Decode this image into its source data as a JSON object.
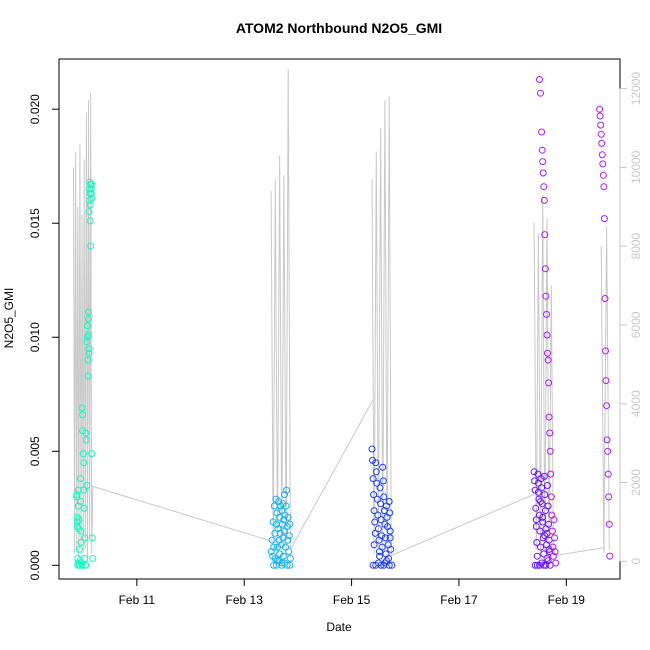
{
  "chart_data": {
    "type": "scatter",
    "title": "ATOM2 Northbound N2O5_GMI",
    "xlabel": "Date",
    "ylabel": "N2O5_GMI",
    "x_ticks": [
      "Feb 11",
      "Feb 13",
      "Feb 15",
      "Feb 17",
      "Feb 19"
    ],
    "x_tick_values": [
      11,
      13,
      15,
      17,
      19
    ],
    "xlim": [
      9.55,
      20.0
    ],
    "y_ticks": [
      "0.000",
      "0.005",
      "0.010",
      "0.015",
      "0.020"
    ],
    "y_tick_values": [
      0.0,
      0.005,
      0.01,
      0.015,
      0.02
    ],
    "ylim": [
      -0.0006,
      0.0222
    ],
    "y2_ticks": [
      "0",
      "2000",
      "4000",
      "6000",
      "8000",
      "10000",
      "12000"
    ],
    "y2_tick_values": [
      0,
      2000,
      4000,
      6000,
      8000,
      10000,
      12000
    ],
    "y2lim": [
      -450,
      12750
    ],
    "grid": false,
    "series": [
      {
        "color": "#19f5c2",
        "values_x": [
          9.88,
          9.88,
          9.89,
          9.89,
          9.89,
          9.9,
          9.9,
          9.9,
          9.91,
          9.91,
          9.92,
          9.92,
          9.93,
          9.93,
          9.94,
          9.94,
          9.95,
          9.95,
          9.96,
          9.96,
          9.97,
          9.98,
          9.98,
          9.99,
          9.99,
          10.0,
          10.01,
          10.01,
          10.02,
          10.03,
          10.03,
          10.04,
          10.05,
          10.05,
          10.06,
          10.07,
          10.07,
          10.08,
          10.08,
          10.09,
          10.09,
          10.1,
          10.1,
          10.1,
          10.11,
          10.11,
          10.11,
          10.12,
          10.12,
          10.12,
          10.13,
          10.13,
          10.13,
          10.14,
          10.14,
          10.15,
          10.15,
          10.16,
          10.16,
          10.16,
          10.17,
          10.18
        ],
        "values_y": [
          0.0031,
          0.003,
          0.0021,
          0.0019,
          0.0017,
          0.0003,
          0.0001,
          0.0,
          0.0033,
          0.0026,
          0.002,
          0.0016,
          0.0007,
          0.0,
          0.0,
          0.0002,
          0.0038,
          0.0028,
          0.0015,
          0.001,
          0.0001,
          0.0,
          0.0069,
          0.0066,
          0.0059,
          0.0049,
          0.0045,
          0.0033,
          0.0025,
          0.0012,
          0.0003,
          0.0,
          0.0,
          0.0058,
          0.0055,
          0.0035,
          0.0098,
          0.0105,
          0.01,
          0.009,
          0.0083,
          0.0108,
          0.0111,
          0.0101,
          0.0095,
          0.0093,
          0.0155,
          0.016,
          0.0165,
          0.0168,
          0.0163,
          0.0158,
          0.0151,
          0.014,
          0.0167,
          0.0163,
          0.0165,
          0.0167,
          0.0161,
          0.0049,
          0.0012,
          0.0003
        ]
      },
      {
        "color": "#16b0ee",
        "values_x": [
          13.5,
          13.52,
          13.53,
          13.54,
          13.55,
          13.56,
          13.57,
          13.58,
          13.59,
          13.6,
          13.61,
          13.62,
          13.62,
          13.63,
          13.64,
          13.65,
          13.66,
          13.66,
          13.67,
          13.68,
          13.69,
          13.7,
          13.7,
          13.71,
          13.72,
          13.72,
          13.73,
          13.74,
          13.75,
          13.75,
          13.76,
          13.77,
          13.78,
          13.79,
          13.8,
          13.81,
          13.82,
          13.83,
          13.84,
          13.85,
          13.86,
          13.55,
          13.6,
          13.65,
          13.7,
          13.75,
          13.8,
          13.85
        ],
        "values_y": [
          0.0006,
          0.0011,
          0.0004,
          0.0019,
          0.0008,
          0.0026,
          0.0014,
          0.0003,
          0.0029,
          0.0018,
          0.0023,
          0.0008,
          0.0002,
          0.0016,
          0.0028,
          0.0011,
          0.0021,
          0.0005,
          0.0014,
          0.0026,
          0.0009,
          0.0024,
          0.0001,
          0.0018,
          0.0027,
          0.0012,
          0.0004,
          0.002,
          0.0031,
          0.0015,
          0.0022,
          0.0008,
          0.0026,
          0.0033,
          0.0017,
          0.0011,
          0.0021,
          0.0006,
          0.0013,
          0.0018,
          0.0003,
          0.0,
          0.0,
          0.0002,
          0.0,
          0.0001,
          0.0,
          0.0
        ]
      },
      {
        "color": "#1c3ef0",
        "values_x": [
          15.38,
          15.39,
          15.4,
          15.41,
          15.42,
          15.43,
          15.44,
          15.45,
          15.46,
          15.47,
          15.48,
          15.49,
          15.5,
          15.51,
          15.52,
          15.53,
          15.54,
          15.55,
          15.56,
          15.57,
          15.58,
          15.59,
          15.6,
          15.61,
          15.62,
          15.63,
          15.64,
          15.65,
          15.66,
          15.67,
          15.68,
          15.69,
          15.7,
          15.71,
          15.72,
          15.73,
          15.4,
          15.45,
          15.5,
          15.55,
          15.6,
          15.65,
          15.7,
          15.75,
          15.42,
          15.52,
          15.62,
          15.72
        ],
        "values_y": [
          0.0051,
          0.0046,
          0.0038,
          0.0031,
          0.0024,
          0.0019,
          0.0014,
          0.0045,
          0.0041,
          0.0036,
          0.0029,
          0.0022,
          0.0016,
          0.0011,
          0.0006,
          0.0034,
          0.0027,
          0.002,
          0.0013,
          0.0008,
          0.0043,
          0.0037,
          0.003,
          0.0024,
          0.0018,
          0.0012,
          0.0005,
          0.0026,
          0.0021,
          0.0017,
          0.0009,
          0.0003,
          0.0028,
          0.0023,
          0.0015,
          0.0007,
          0.0,
          0.0,
          0.0001,
          0.0,
          0.0,
          0.0002,
          0.0,
          0.0,
          0.0009,
          0.0004,
          0.0001,
          0.0012
        ]
      },
      {
        "color": "#6a14f2",
        "values_x": [
          18.4,
          18.41,
          18.42,
          18.43,
          18.44,
          18.45,
          18.46,
          18.47,
          18.48,
          18.49,
          18.5,
          18.51,
          18.52,
          18.53,
          18.54,
          18.55,
          18.56,
          18.57,
          18.58,
          18.59,
          18.6,
          18.61,
          18.62,
          18.63,
          18.64,
          18.65,
          18.66,
          18.67,
          18.68,
          18.69,
          18.42,
          18.46,
          18.5,
          18.54,
          18.58,
          18.62,
          18.66,
          18.7,
          18.44,
          18.52,
          18.6,
          18.68,
          18.48,
          18.56,
          18.64
        ],
        "values_y": [
          0.0041,
          0.0037,
          0.0033,
          0.0025,
          0.0017,
          0.001,
          0.0004,
          0.004,
          0.0036,
          0.0029,
          0.0022,
          0.0015,
          0.0008,
          0.0038,
          0.0034,
          0.0027,
          0.0019,
          0.0012,
          0.0005,
          0.0039,
          0.0031,
          0.0024,
          0.0016,
          0.0009,
          0.0003,
          0.0035,
          0.0026,
          0.0018,
          0.0011,
          0.0006,
          0.0,
          0.0,
          0.0,
          0.0001,
          0.0,
          0.0,
          0.0002,
          0.0,
          0.002,
          0.0028,
          0.0013,
          0.0007,
          0.0032,
          0.0021,
          0.0014
        ]
      },
      {
        "color": "#b01cf0",
        "values_x": [
          18.5,
          18.52,
          18.54,
          18.55,
          18.56,
          18.57,
          18.58,
          18.59,
          18.6,
          18.61,
          18.62,
          18.63,
          18.64,
          18.65,
          18.66,
          18.67,
          18.68,
          18.69,
          18.7,
          18.71,
          18.72,
          18.73,
          18.74,
          18.75,
          18.76,
          18.77,
          18.78,
          18.79,
          18.8,
          19.62,
          19.63,
          19.64,
          19.65,
          19.66,
          19.67,
          19.68,
          19.69,
          19.7,
          19.71,
          19.72,
          19.73,
          19.74,
          19.75,
          19.76,
          19.77,
          19.78,
          19.79,
          19.8,
          19.81
        ],
        "values_y": [
          0.0213,
          0.0207,
          0.019,
          0.0182,
          0.0177,
          0.0172,
          0.0166,
          0.016,
          0.0145,
          0.013,
          0.0118,
          0.011,
          0.0101,
          0.0093,
          0.009,
          0.008,
          0.0065,
          0.0058,
          0.005,
          0.004,
          0.003,
          0.0022,
          0.0015,
          0.0008,
          0.0004,
          0.002,
          0.0012,
          0.0006,
          0.0001,
          0.02,
          0.0197,
          0.0193,
          0.0189,
          0.0185,
          0.018,
          0.0176,
          0.0171,
          0.0166,
          0.0152,
          0.0117,
          0.0094,
          0.0081,
          0.007,
          0.0055,
          0.005,
          0.004,
          0.003,
          0.0018,
          0.0004
        ]
      }
    ],
    "secondary_series": {
      "color": "#c8c8c8",
      "type": "line",
      "segments": [
        {
          "x": [
            9.82,
            9.84,
            9.86,
            9.88,
            9.9,
            9.92,
            9.94,
            9.96,
            9.98,
            10.0,
            10.02,
            10.04,
            10.06,
            10.08,
            10.1,
            10.12,
            10.14,
            10.16,
            10.18
          ],
          "y": [
            10000,
            200,
            10400,
            300,
            9000,
            100,
            10600,
            400,
            8800,
            200,
            10200,
            300,
            11400,
            100,
            11700,
            600,
            11900,
            200,
            1900
          ]
        },
        {
          "x": [
            10.18,
            13.54
          ],
          "y": [
            1900,
            500
          ]
        },
        {
          "x": [
            13.5,
            13.54,
            13.58,
            13.62,
            13.66,
            13.7,
            13.74,
            13.78,
            13.82,
            13.86
          ],
          "y": [
            9400,
            300,
            9700,
            200,
            10300,
            400,
            9800,
            100,
            12500,
            300
          ]
        },
        {
          "x": [
            13.86,
            15.4
          ],
          "y": [
            300,
            4100
          ]
        },
        {
          "x": [
            15.38,
            15.42,
            15.46,
            15.5,
            15.54,
            15.58,
            15.62,
            15.66,
            15.7,
            15.74
          ],
          "y": [
            9700,
            200,
            10400,
            400,
            11000,
            300,
            11700,
            200,
            11800,
            150
          ]
        },
        {
          "x": [
            15.74,
            18.4
          ],
          "y": [
            150,
            1700
          ]
        },
        {
          "x": [
            18.4,
            18.44,
            18.48,
            18.52,
            18.56,
            18.6,
            18.64,
            18.68,
            18.72,
            18.76,
            18.8
          ],
          "y": [
            8600,
            300,
            8300,
            200,
            9300,
            200,
            8700,
            100,
            7000,
            300,
            150
          ]
        },
        {
          "x": [
            18.8,
            19.72
          ],
          "y": [
            150,
            350
          ]
        },
        {
          "x": [
            19.65,
            19.7,
            19.75,
            19.8
          ],
          "y": [
            8000,
            200,
            8500,
            300
          ]
        }
      ]
    }
  }
}
